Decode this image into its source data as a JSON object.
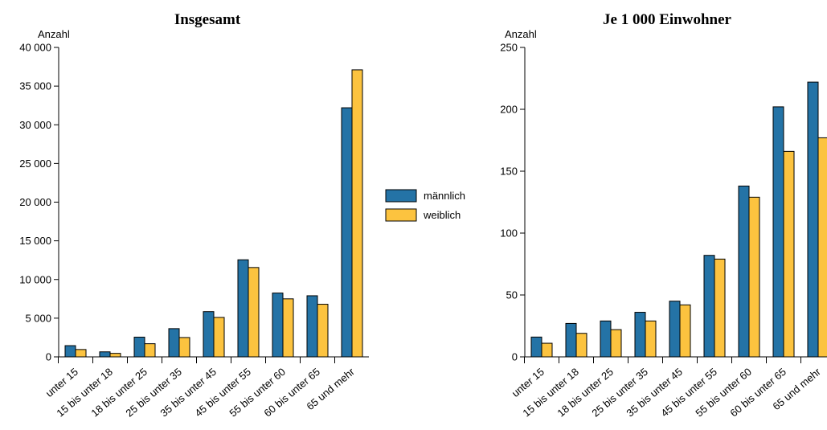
{
  "colors": {
    "maennlich": "#2473a6",
    "weiblich": "#fcc33f",
    "stroke": "#000000"
  },
  "legend": {
    "maennlich": "männlich",
    "weiblich": "weiblich",
    "placement": "center-between-charts"
  },
  "chart_data": [
    {
      "type": "bar",
      "title": "Insgesamt",
      "ylabel": "Anzahl",
      "ylim": [
        0,
        40000
      ],
      "yticks": [
        0,
        5000,
        10000,
        15000,
        20000,
        25000,
        30000,
        35000,
        40000
      ],
      "ytick_labels": [
        "0",
        "5 000",
        "10 000",
        "15 000",
        "20 000",
        "25 000",
        "30 000",
        "35 000",
        "40 000"
      ],
      "grid": false,
      "categories": [
        "unter 15",
        "15 bis unter 18",
        "18 bis unter 25",
        "25 bis unter 35",
        "35 bis unter 45",
        "45 bis unter 55",
        "55 bis unter 60",
        "60 bis unter 65",
        "65 und mehr"
      ],
      "series": [
        {
          "name": "männlich",
          "values": [
            1450,
            650,
            2550,
            3650,
            5850,
            12550,
            8250,
            7900,
            32200
          ]
        },
        {
          "name": "weiblich",
          "values": [
            950,
            450,
            1700,
            2500,
            5100,
            11550,
            7500,
            6800,
            37100
          ]
        }
      ]
    },
    {
      "type": "bar",
      "title": "Je 1 000 Einwohner",
      "ylabel": "Anzahl",
      "ylim": [
        0,
        250
      ],
      "yticks": [
        0,
        50,
        100,
        150,
        200,
        250
      ],
      "ytick_labels": [
        "0",
        "50",
        "100",
        "150",
        "200",
        "250"
      ],
      "grid": false,
      "categories": [
        "unter 15",
        "15 bis unter 18",
        "18 bis unter 25",
        "25 bis unter 35",
        "35 bis unter 45",
        "45 bis unter 55",
        "55 bis unter 60",
        "60 bis unter 65",
        "65 und mehr"
      ],
      "series": [
        {
          "name": "männlich",
          "values": [
            16,
            27,
            29,
            36,
            45,
            82,
            138,
            202,
            222
          ]
        },
        {
          "name": "weiblich",
          "values": [
            11,
            19,
            22,
            29,
            42,
            79,
            129,
            166,
            177
          ]
        }
      ]
    }
  ]
}
